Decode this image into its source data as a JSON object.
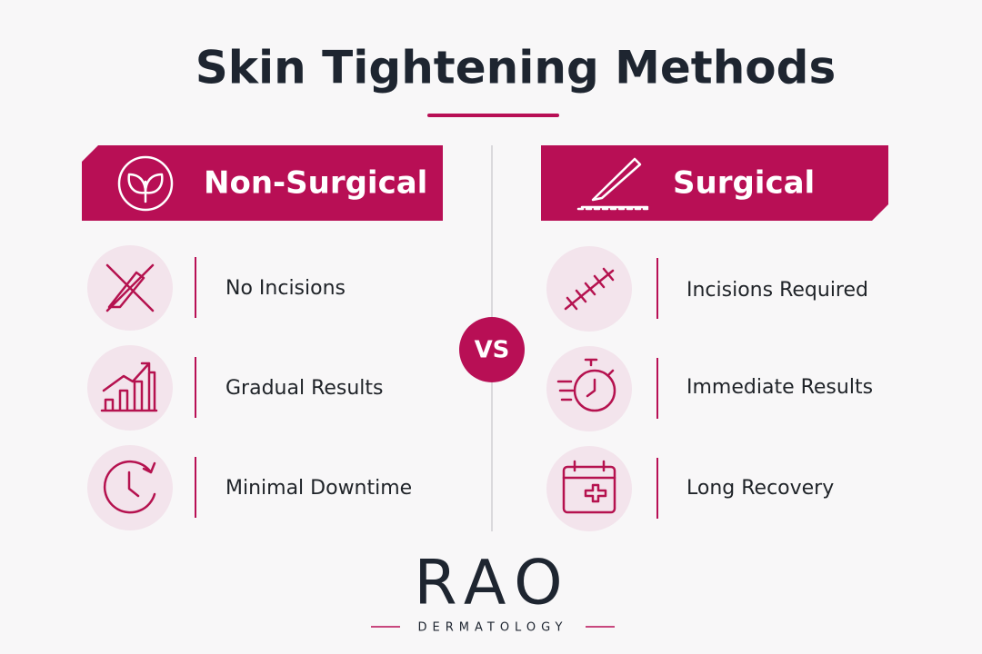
{
  "title": "Skin Tightening Methods",
  "vs": "VS",
  "non_surgical": {
    "heading": "Non-Surgical",
    "items": [
      "No Incisions",
      "Gradual Results",
      "Minimal Downtime"
    ]
  },
  "surgical": {
    "heading": "Surgical",
    "items": [
      "Incisions Required",
      "Immediate Results",
      "Long Recovery"
    ]
  },
  "logo": {
    "name": "RAO",
    "subtitle": "DERMATOLOGY"
  }
}
